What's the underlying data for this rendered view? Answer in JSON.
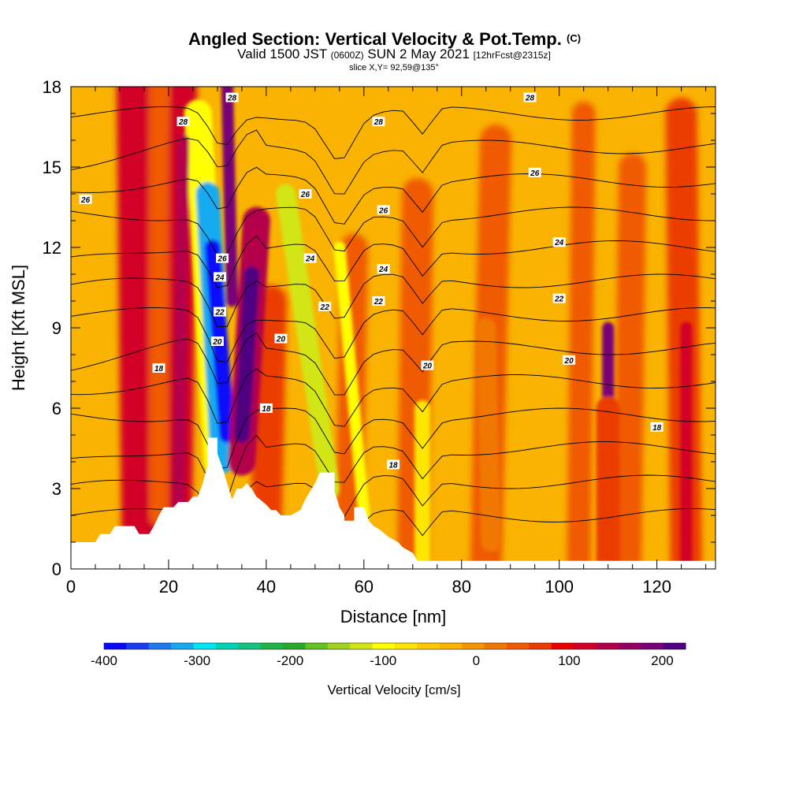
{
  "title": {
    "main": "Angled Section: Vertical Velocity & Pot.Temp.",
    "main_tag": "(C)",
    "valid_prefix": "Valid 1500 JST",
    "valid_utc": "(0600Z)",
    "valid_date": "SUN 2 May 2021",
    "forecast": "[12hrFcst@2315z]",
    "slice": "slice X,Y= 92,59@135°"
  },
  "colors": {
    "terrain": "#ffffff",
    "contour": "#000000",
    "background_field": "#f9b300",
    "colorbar": [
      "#0a0afa",
      "#1a3cf0",
      "#1e78f0",
      "#14aaf0",
      "#00e6f5",
      "#00d2b4",
      "#14c382",
      "#1eb446",
      "#28aa28",
      "#64c31e",
      "#a0d21e",
      "#d2e614",
      "#ffff00",
      "#ffe600",
      "#ffc800",
      "#fab400",
      "#f59600",
      "#f07800",
      "#f05a00",
      "#eb3c00",
      "#eb0000",
      "#d20028",
      "#b4004b",
      "#960064",
      "#780078",
      "#500080"
    ]
  },
  "chart_data": {
    "type": "heatmap",
    "xlabel": "Distance [nm]",
    "ylabel": "Height [Kft MSL]",
    "xlim": [
      0,
      132
    ],
    "ylim": [
      0,
      18
    ],
    "xticks": [
      0,
      20,
      40,
      60,
      80,
      100,
      120
    ],
    "yticks": [
      0,
      3,
      6,
      9,
      12,
      15,
      18
    ],
    "colorbar": {
      "label": "Vertical Velocity [cm/s]",
      "range": [
        -400,
        225
      ],
      "ticks": [
        -400,
        -300,
        -200,
        -100,
        0,
        100,
        200
      ],
      "levels": 26
    },
    "terrain": [
      [
        0,
        1.0
      ],
      [
        5,
        1.0
      ],
      [
        6,
        1.3
      ],
      [
        7,
        1.3
      ],
      [
        8,
        1.3
      ],
      [
        9,
        1.6
      ],
      [
        13,
        1.6
      ],
      [
        14,
        1.3
      ],
      [
        16,
        1.3
      ],
      [
        17,
        1.6
      ],
      [
        18,
        2.0
      ],
      [
        19,
        2.3
      ],
      [
        21,
        2.3
      ],
      [
        22,
        2.5
      ],
      [
        24,
        2.5
      ],
      [
        25,
        2.7
      ],
      [
        26,
        2.7
      ],
      [
        27,
        3.2
      ],
      [
        28,
        3.9
      ],
      [
        28,
        4.9
      ],
      [
        30,
        4.9
      ],
      [
        30,
        4.3
      ],
      [
        31,
        3.8
      ],
      [
        32,
        3.2
      ],
      [
        33,
        2.6
      ],
      [
        34,
        3.0
      ],
      [
        35,
        3.0
      ],
      [
        36,
        3.2
      ],
      [
        37,
        3.0
      ],
      [
        38,
        2.7
      ],
      [
        40,
        2.4
      ],
      [
        41,
        2.2
      ],
      [
        42,
        2.2
      ],
      [
        43,
        2.0
      ],
      [
        45,
        2.0
      ],
      [
        47,
        2.2
      ],
      [
        48,
        2.6
      ],
      [
        49,
        2.9
      ],
      [
        50,
        3.2
      ],
      [
        51,
        3.6
      ],
      [
        54,
        3.6
      ],
      [
        54,
        2.9
      ],
      [
        55,
        2.3
      ],
      [
        56,
        2.0
      ],
      [
        56,
        1.8
      ],
      [
        58,
        1.8
      ],
      [
        58,
        2.3
      ],
      [
        60,
        2.3
      ],
      [
        61,
        1.8
      ],
      [
        62,
        1.6
      ],
      [
        63,
        1.5
      ],
      [
        65,
        1.2
      ],
      [
        67,
        1.0
      ],
      [
        68,
        0.8
      ],
      [
        70,
        0.6
      ],
      [
        71,
        0.3
      ],
      [
        132,
        0.3
      ]
    ],
    "theta_contours": [
      16,
      17,
      18,
      19,
      20,
      21,
      22,
      23,
      24,
      25,
      26,
      27,
      28
    ],
    "theta_labels": [
      {
        "text": "28",
        "x": 33,
        "y": 17.6
      },
      {
        "text": "28",
        "x": 23,
        "y": 16.7
      },
      {
        "text": "28",
        "x": 94,
        "y": 17.6
      },
      {
        "text": "28",
        "x": 63,
        "y": 16.7
      },
      {
        "text": "26",
        "x": 3,
        "y": 13.8
      },
      {
        "text": "26",
        "x": 95,
        "y": 14.8
      },
      {
        "text": "26",
        "x": 48,
        "y": 14.0
      },
      {
        "text": "26",
        "x": 64,
        "y": 13.4
      },
      {
        "text": "26",
        "x": 31,
        "y": 11.6
      },
      {
        "text": "24",
        "x": 30.5,
        "y": 10.9
      },
      {
        "text": "24",
        "x": 49,
        "y": 11.6
      },
      {
        "text": "24",
        "x": 64,
        "y": 11.2
      },
      {
        "text": "24",
        "x": 100,
        "y": 12.2
      },
      {
        "text": "22",
        "x": 30.5,
        "y": 9.6
      },
      {
        "text": "22",
        "x": 52,
        "y": 9.8
      },
      {
        "text": "22",
        "x": 63,
        "y": 10.0
      },
      {
        "text": "22",
        "x": 100,
        "y": 10.1
      },
      {
        "text": "20",
        "x": 30,
        "y": 8.5
      },
      {
        "text": "20",
        "x": 43,
        "y": 8.6
      },
      {
        "text": "20",
        "x": 73,
        "y": 7.6
      },
      {
        "text": "20",
        "x": 102,
        "y": 7.8
      },
      {
        "text": "18",
        "x": 18,
        "y": 7.5
      },
      {
        "text": "18",
        "x": 40,
        "y": 6.0
      },
      {
        "text": "18",
        "x": 66,
        "y": 3.9
      },
      {
        "text": "18",
        "x": 120,
        "y": 5.3
      }
    ]
  }
}
